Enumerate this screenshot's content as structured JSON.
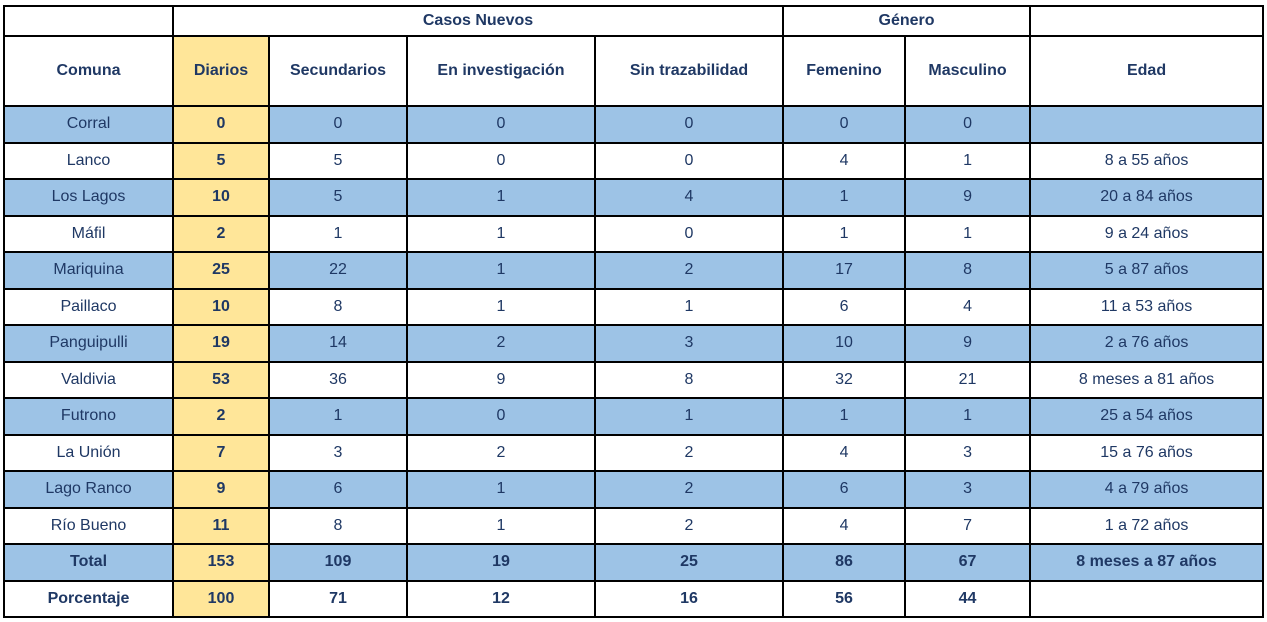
{
  "chart_data": {
    "type": "table",
    "group_headers": [
      {
        "label": "Casos Nuevos",
        "span": 4
      },
      {
        "label": "Género",
        "span": 2
      }
    ],
    "columns": [
      "Comuna",
      "Diarios",
      "Secundarios",
      "En investigación",
      "Sin trazabilidad",
      "Femenino",
      "Masculino",
      "Edad"
    ],
    "rows": [
      [
        "Corral",
        "0",
        "0",
        "0",
        "0",
        "0",
        "0",
        ""
      ],
      [
        "Lanco",
        "5",
        "5",
        "0",
        "0",
        "4",
        "1",
        "8 a 55 años"
      ],
      [
        "Los Lagos",
        "10",
        "5",
        "1",
        "4",
        "1",
        "9",
        "20 a 84 años"
      ],
      [
        "Máfil",
        "2",
        "1",
        "1",
        "0",
        "1",
        "1",
        "9 a 24 años"
      ],
      [
        "Mariquina",
        "25",
        "22",
        "1",
        "2",
        "17",
        "8",
        "5 a 87 años"
      ],
      [
        "Paillaco",
        "10",
        "8",
        "1",
        "1",
        "6",
        "4",
        "11 a 53 años"
      ],
      [
        "Panguipulli",
        "19",
        "14",
        "2",
        "3",
        "10",
        "9",
        "2 a 76 años"
      ],
      [
        "Valdivia",
        "53",
        "36",
        "9",
        "8",
        "32",
        "21",
        "8 meses a 81 años"
      ],
      [
        "Futrono",
        "2",
        "1",
        "0",
        "1",
        "1",
        "1",
        "25 a 54 años"
      ],
      [
        "La Unión",
        "7",
        "3",
        "2",
        "2",
        "4",
        "3",
        "15 a 76 años"
      ],
      [
        "Lago Ranco",
        "9",
        "6",
        "1",
        "2",
        "6",
        "3",
        "4 a 79 años"
      ],
      [
        "Río Bueno",
        "11",
        "8",
        "1",
        "2",
        "4",
        "7",
        "1 a 72 años"
      ],
      [
        "Total",
        "153",
        "109",
        "19",
        "25",
        "86",
        "67",
        "8 meses a 87 años"
      ],
      [
        "Porcentaje",
        "100",
        "71",
        "12",
        "16",
        "56",
        "44",
        ""
      ]
    ],
    "colors": {
      "row_blue": "#9DC3E6",
      "diarios_yellow": "#FFE699",
      "text_navy": "#1F3864",
      "border": "#000000",
      "background": "#FFFFFF"
    }
  }
}
